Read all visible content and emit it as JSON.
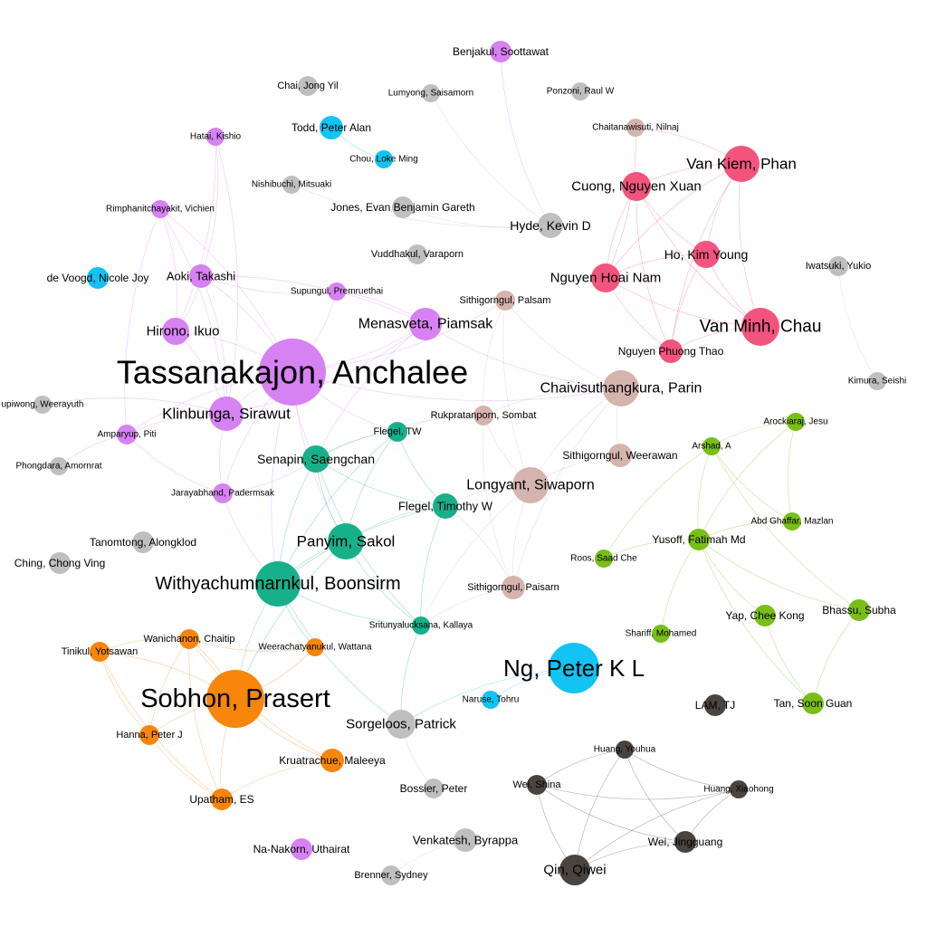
{
  "graph": {
    "colors": {
      "purple": "#d682f2",
      "pink": "#f2547e",
      "rose": "#d5b4ae",
      "green": "#18b08a",
      "orange": "#f7860b",
      "cyan": "#12c3f4",
      "lime": "#79be18",
      "gray": "#bfbfbf",
      "dark": "#4a433e"
    },
    "nodes": [
      {
        "label": "Tassanakajon, Anchalee",
        "color": "purple"
      },
      {
        "label": "Klinbunga, Sirawut",
        "color": "purple"
      },
      {
        "label": "Menasveta, Piamsak",
        "color": "purple"
      },
      {
        "label": "Hirono, Ikuo",
        "color": "purple"
      },
      {
        "label": "Aoki, Takashi",
        "color": "purple"
      },
      {
        "label": "Rimphanitchayakit, Vichien",
        "color": "purple"
      },
      {
        "label": "Hatai, Kishio",
        "color": "purple"
      },
      {
        "label": "Supungul, Premruethai",
        "color": "purple"
      },
      {
        "label": "Amparyup, Piti",
        "color": "purple"
      },
      {
        "label": "Jarayabhand, Padermsak",
        "color": "purple"
      },
      {
        "label": "Benjakul, Soottawat",
        "color": "purple"
      },
      {
        "label": "Na-Nakorn, Uthairat",
        "color": "purple"
      },
      {
        "label": "Van Kiem, Phan",
        "color": "pink"
      },
      {
        "label": "Cuong, Nguyen Xuan",
        "color": "pink"
      },
      {
        "label": "Ho, Kim Young",
        "color": "pink"
      },
      {
        "label": "Nguyen Hoai Nam",
        "color": "pink"
      },
      {
        "label": "Van Minh, Chau",
        "color": "pink"
      },
      {
        "label": "Nguyen Phuong Thao",
        "color": "pink"
      },
      {
        "label": "Chaitanawisuti, Nilnaj",
        "color": "rose"
      },
      {
        "label": "Sithigorngul, Palsam",
        "color": "rose"
      },
      {
        "label": "Chaivisuthangkura, Parin",
        "color": "rose"
      },
      {
        "label": "Rukpratanporn, Sombat",
        "color": "rose"
      },
      {
        "label": "Sithigorngul, Weerawan",
        "color": "rose"
      },
      {
        "label": "Longyant, Siwaporn",
        "color": "rose"
      },
      {
        "label": "Sithigorngul, Paisarn",
        "color": "rose"
      },
      {
        "label": "Flegel, TW",
        "color": "green"
      },
      {
        "label": "Senapin, Saengchan",
        "color": "green"
      },
      {
        "label": "Flegel, Timothy W",
        "color": "green"
      },
      {
        "label": "Panyim, Sakol",
        "color": "green"
      },
      {
        "label": "Withyachumnarnkul, Boonsirm",
        "color": "green"
      },
      {
        "label": "Sritunyalucksana, Kallaya",
        "color": "green"
      },
      {
        "label": "Sobhon, Prasert",
        "color": "orange"
      },
      {
        "label": "Wanichanon, Chaitip",
        "color": "orange"
      },
      {
        "label": "Tinikul, Yotsawan",
        "color": "orange"
      },
      {
        "label": "Weerachatyanukul, Wattana",
        "color": "orange"
      },
      {
        "label": "Hanna, Peter J",
        "color": "orange"
      },
      {
        "label": "Kruatrachue, Maleeya",
        "color": "orange"
      },
      {
        "label": "Upatham, ES",
        "color": "orange"
      },
      {
        "label": "Todd, Peter Alan",
        "color": "cyan"
      },
      {
        "label": "Chou, Loke Ming",
        "color": "cyan"
      },
      {
        "label": "de Voogd, Nicole Joy",
        "color": "cyan"
      },
      {
        "label": "Ng, Peter K L",
        "color": "cyan"
      },
      {
        "label": "Naruse, Tohru",
        "color": "cyan"
      },
      {
        "label": "Arockiaraj, Jesu",
        "color": "lime"
      },
      {
        "label": "Arshad, A",
        "color": "lime"
      },
      {
        "label": "Abd Ghaffar, Mazlan",
        "color": "lime"
      },
      {
        "label": "Yusoff, Fatimah Md",
        "color": "lime"
      },
      {
        "label": "Roos, Saad Che",
        "color": "lime"
      },
      {
        "label": "Yap, Chee Kong",
        "color": "lime"
      },
      {
        "label": "Bhassu, Subha",
        "color": "lime"
      },
      {
        "label": "Shariff, Mohamed",
        "color": "lime"
      },
      {
        "label": "Tan, Soon Guan",
        "color": "lime"
      },
      {
        "label": "Chai, Jong Yil",
        "color": "gray"
      },
      {
        "label": "Lumyong, Saisamorn",
        "color": "gray"
      },
      {
        "label": "Ponzoni, Raul W",
        "color": "gray"
      },
      {
        "label": "Nishibuchi, Mitsuaki",
        "color": "gray"
      },
      {
        "label": "Jones, Evan Benjamin Gareth",
        "color": "gray"
      },
      {
        "label": "Hyde, Kevin D",
        "color": "gray"
      },
      {
        "label": "Vuddhakul, Varaporn",
        "color": "gray"
      },
      {
        "label": "Iwatsuki, Yukio",
        "color": "gray"
      },
      {
        "label": "Kimura, Seishi",
        "color": "gray"
      },
      {
        "label": "upiwong, Weerayuth",
        "color": "gray"
      },
      {
        "label": "Phongdara, Amornrat",
        "color": "gray"
      },
      {
        "label": "Tanomtong, Alongklod",
        "color": "gray"
      },
      {
        "label": "Ching, Chong Ving",
        "color": "gray"
      },
      {
        "label": "Sorgeloos, Patrick",
        "color": "gray"
      },
      {
        "label": "Bossier, Peter",
        "color": "gray"
      },
      {
        "label": "Venkatesh, Byrappa",
        "color": "gray"
      },
      {
        "label": "Brenner, Sydney",
        "color": "gray"
      },
      {
        "label": "LAM, TJ",
        "color": "dark"
      },
      {
        "label": "Huang, Youhua",
        "color": "dark"
      },
      {
        "label": "Wei, Shina",
        "color": "dark"
      },
      {
        "label": "Huang, Xiaohong",
        "color": "dark"
      },
      {
        "label": "Wei, Jingguang",
        "color": "dark"
      },
      {
        "label": "Qin, Qiwei",
        "color": "dark"
      }
    ]
  }
}
